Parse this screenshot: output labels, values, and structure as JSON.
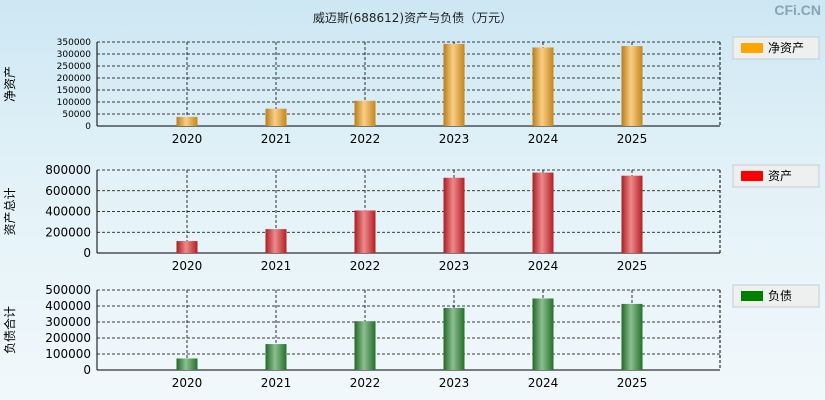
{
  "title": "威迈斯(688612)资产与负债（万元）",
  "watermark": "CFi.CN",
  "chart_data": [
    {
      "type": "bar",
      "categories": [
        "2020",
        "2021",
        "2022",
        "2023",
        "2024",
        "2025"
      ],
      "series": [
        {
          "name": "净资产",
          "values": [
            38000,
            72000,
            105000,
            342000,
            327000,
            333000
          ]
        }
      ],
      "ylabel": "净资产",
      "ylim": [
        0,
        350000
      ],
      "yticks": [
        0,
        50000,
        100000,
        150000,
        200000,
        250000,
        300000,
        350000
      ],
      "color": "#f5a623",
      "legend_swatch": "#ffa500",
      "grid": true,
      "legend_position": "right"
    },
    {
      "type": "bar",
      "categories": [
        "2020",
        "2021",
        "2022",
        "2023",
        "2024",
        "2025"
      ],
      "series": [
        {
          "name": "资产",
          "values": [
            115000,
            230000,
            410000,
            725000,
            775000,
            745000
          ]
        }
      ],
      "ylabel": "资产总计",
      "ylim": [
        0,
        800000
      ],
      "yticks": [
        0,
        200000,
        400000,
        600000,
        800000
      ],
      "color": "#e0282d",
      "legend_swatch": "#ff0000",
      "grid": true,
      "legend_position": "right"
    },
    {
      "type": "bar",
      "categories": [
        "2020",
        "2021",
        "2022",
        "2023",
        "2024",
        "2025"
      ],
      "series": [
        {
          "name": "负债",
          "values": [
            72000,
            162000,
            305000,
            388000,
            447000,
            413000
          ]
        }
      ],
      "ylabel": "负债合计",
      "ylim": [
        0,
        500000
      ],
      "yticks": [
        0,
        100000,
        200000,
        300000,
        400000,
        500000
      ],
      "color": "#2e8b35",
      "legend_swatch": "#008000",
      "grid": true,
      "legend_position": "right"
    }
  ]
}
